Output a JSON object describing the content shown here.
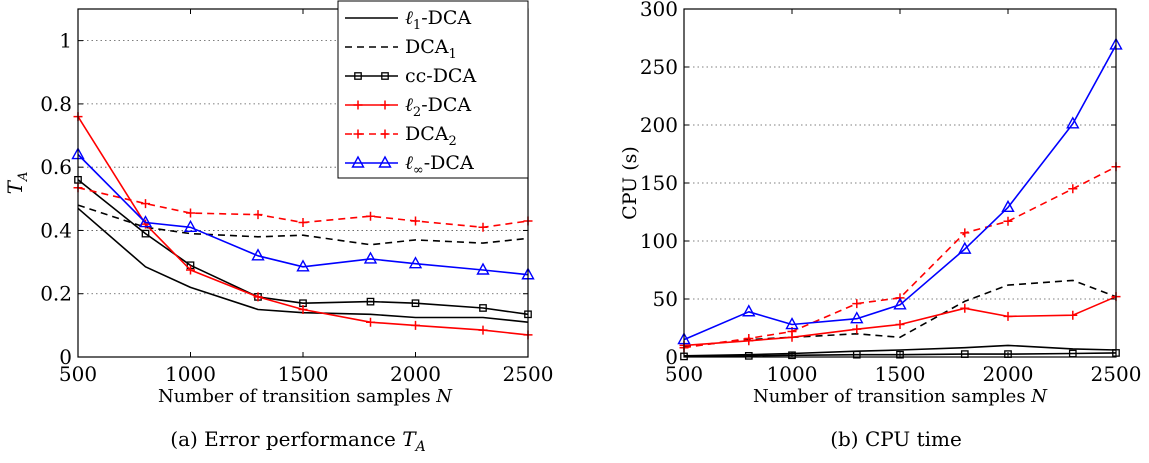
{
  "chart_data": [
    {
      "type": "line",
      "caption": "(a) Error performance T_A",
      "xlabel": "Number of transition samples N",
      "ylabel": "T_A",
      "xlim": [
        500,
        2500
      ],
      "ylim": [
        0,
        1.1
      ],
      "xticks": [
        500,
        1000,
        1500,
        2000,
        2500
      ],
      "yticks": [
        0,
        0.2,
        0.4,
        0.6,
        0.8,
        1
      ],
      "ytick_labels": [
        "0",
        "0.2",
        "0.4",
        "0.6",
        "0.8",
        "1"
      ],
      "grid": "horizontal dotted",
      "legend_position": "top-right",
      "x": [
        500,
        800,
        1000,
        1300,
        1500,
        1800,
        2000,
        2300,
        2500
      ],
      "series": [
        {
          "name": "ℓ1-DCA",
          "color": "#000000",
          "dash": "solid",
          "marker": "none",
          "values": [
            0.47,
            0.285,
            0.22,
            0.15,
            0.14,
            0.135,
            0.125,
            0.125,
            0.11
          ]
        },
        {
          "name": "DCA1",
          "color": "#000000",
          "dash": "dashed",
          "marker": "none",
          "values": [
            0.48,
            0.41,
            0.39,
            0.38,
            0.385,
            0.355,
            0.37,
            0.36,
            0.375
          ]
        },
        {
          "name": "cc-DCA",
          "color": "#000000",
          "dash": "solid",
          "marker": "square",
          "values": [
            0.56,
            0.39,
            0.29,
            0.19,
            0.17,
            0.175,
            0.17,
            0.155,
            0.135
          ]
        },
        {
          "name": "ℓ2-DCA",
          "color": "#ff0000",
          "dash": "solid",
          "marker": "plus",
          "values": [
            0.76,
            0.42,
            0.275,
            0.19,
            0.15,
            0.11,
            0.1,
            0.085,
            0.07
          ]
        },
        {
          "name": "DCA2",
          "color": "#ff0000",
          "dash": "dashed",
          "marker": "plus",
          "values": [
            0.535,
            0.485,
            0.455,
            0.45,
            0.425,
            0.445,
            0.43,
            0.41,
            0.43
          ]
        },
        {
          "name": "ℓ∞-DCA",
          "color": "#0000ff",
          "dash": "solid",
          "marker": "triangle",
          "values": [
            0.64,
            0.425,
            0.41,
            0.32,
            0.285,
            0.31,
            0.295,
            0.275,
            0.26
          ]
        }
      ]
    },
    {
      "type": "line",
      "caption": "(b) CPU time",
      "xlabel": "Number of transition samples N",
      "ylabel": "CPU (s)",
      "xlim": [
        500,
        2500
      ],
      "ylim": [
        0,
        300
      ],
      "xticks": [
        500,
        1000,
        1500,
        2000,
        2500
      ],
      "yticks": [
        0,
        50,
        100,
        150,
        200,
        250,
        300
      ],
      "ytick_labels": [
        "0",
        "50",
        "100",
        "150",
        "200",
        "250",
        "300"
      ],
      "grid": "horizontal dotted",
      "x": [
        500,
        800,
        1000,
        1300,
        1500,
        1800,
        2000,
        2300,
        2500
      ],
      "series": [
        {
          "name": "ℓ1-DCA",
          "color": "#000000",
          "dash": "solid",
          "marker": "none",
          "values": [
            1,
            2,
            3,
            5,
            6,
            8,
            10,
            7,
            6
          ]
        },
        {
          "name": "DCA1",
          "color": "#000000",
          "dash": "dashed",
          "marker": "none",
          "values": [
            9,
            15,
            17,
            20,
            17,
            48,
            62,
            66,
            52
          ]
        },
        {
          "name": "cc-DCA",
          "color": "#000000",
          "dash": "solid",
          "marker": "square",
          "values": [
            0.5,
            1,
            1.5,
            2,
            2,
            2.5,
            2.5,
            3,
            3.5
          ]
        },
        {
          "name": "ℓ2-DCA",
          "color": "#ff0000",
          "dash": "solid",
          "marker": "plus",
          "values": [
            10,
            14,
            17,
            24,
            28,
            42,
            35,
            36,
            52
          ]
        },
        {
          "name": "DCA2",
          "color": "#ff0000",
          "dash": "dashed",
          "marker": "plus",
          "values": [
            8,
            16,
            22,
            46,
            51,
            107,
            117,
            145,
            164
          ]
        },
        {
          "name": "ℓ∞-DCA",
          "color": "#0000ff",
          "dash": "solid",
          "marker": "triangle",
          "values": [
            15,
            39,
            28,
            33,
            45,
            93,
            129,
            201,
            269
          ]
        }
      ]
    }
  ]
}
